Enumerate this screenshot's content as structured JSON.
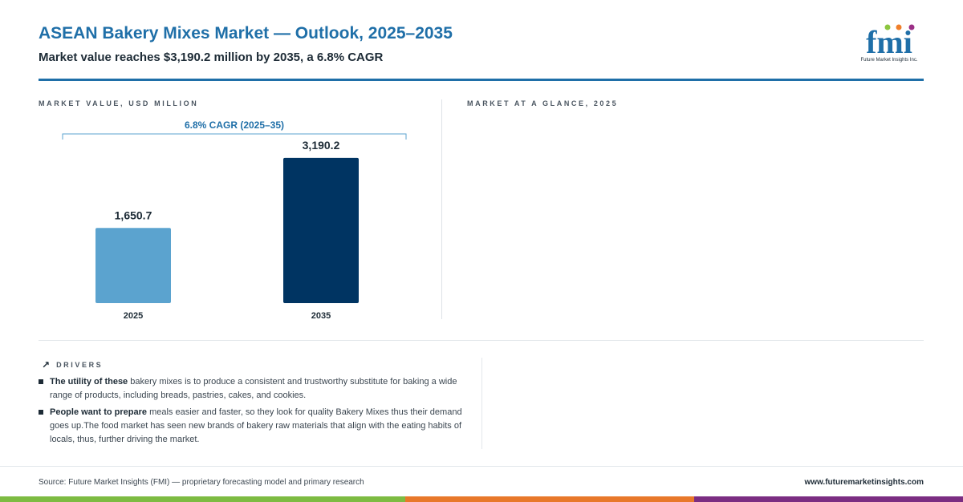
{
  "header": {
    "title": "ASEAN Bakery Mixes Market — Outlook, 2025–2035",
    "subtitle": "Market value reaches $3,190.2 million by 2035, a 6.8% CAGR"
  },
  "logo": {
    "wordmark": "fmi",
    "tagline": "Future Market Insights Inc.",
    "colors": {
      "text": "#1f6fa8",
      "dot1": "#8cc63f",
      "dot2": "#f07f2a",
      "dot3": "#9b2f86"
    }
  },
  "sections": {
    "chart_label": "MARKET VALUE, USD MILLION",
    "glance_label": "MARKET AT A GLANCE, 2025",
    "drivers_label": "DRIVERS",
    "drivers_icon": "arrow-up-right-icon"
  },
  "chart_data": {
    "type": "bar",
    "categories": [
      "2025",
      "2035"
    ],
    "values": [
      1650.7,
      3190.2
    ],
    "value_labels": [
      "1,650.7",
      "3,190.2"
    ],
    "bar_colors": [
      "#5ba3cf",
      "#003462"
    ],
    "annotation": "6.8% CAGR (2025–35)",
    "ylim": [
      0,
      3700
    ],
    "xlabel": "",
    "ylabel": ""
  },
  "drivers": [
    {
      "bold": "The utility of these",
      "text": " bakery mixes is to produce a consistent and trustworthy substitute for baking a wide range of products, including breads, pastries, cakes, and cookies."
    },
    {
      "bold": "People want to prepare",
      "text": " meals easier and faster, so they look for quality Bakery Mixes thus their demand goes up.The food market has seen new brands of bakery raw materials that align with the eating habits of locals, thus, further driving the market."
    }
  ],
  "footer": {
    "source": "Source: Future Market Insights (FMI) — proprietary forecasting model and primary research",
    "url": "www.futuremarketinsights.com"
  },
  "colors": {
    "accent": "#1f6fa8",
    "band_green": "#7dbb42",
    "band_orange": "#e8782a",
    "band_purple": "#7b2d82"
  }
}
